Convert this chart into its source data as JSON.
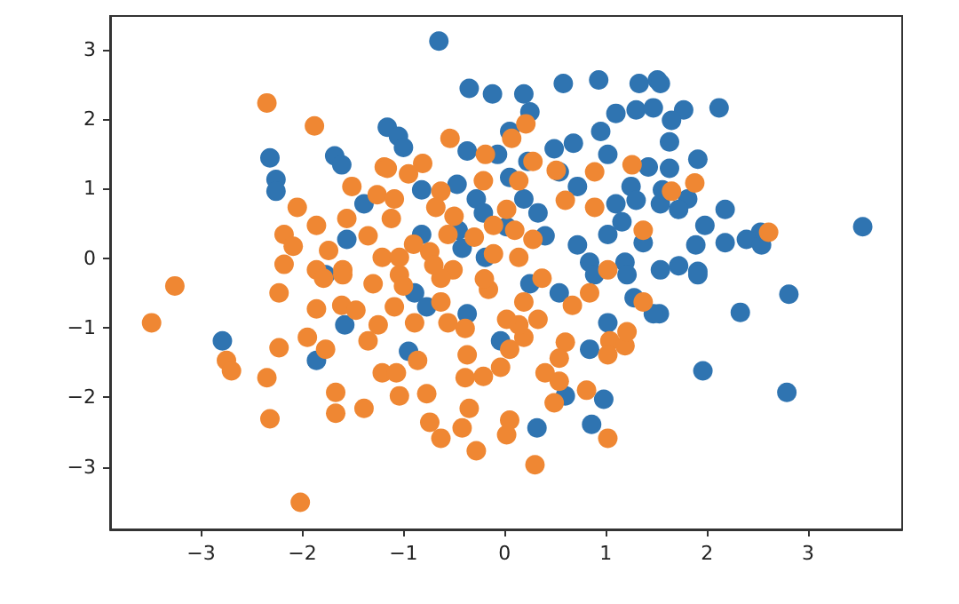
{
  "chart_data": {
    "type": "scatter",
    "xlim": [
      -3.9,
      3.93
    ],
    "ylim": [
      -3.9,
      3.48
    ],
    "xticks": [
      -3,
      -2,
      -1,
      0,
      1,
      2,
      3
    ],
    "yticks": [
      -3,
      -2,
      -1,
      0,
      1,
      2,
      3
    ],
    "grid": false,
    "marker": "circle",
    "series": [
      {
        "color": "#2f74b1",
        "x": [
          -0.65,
          -0.35,
          -0.12,
          0.19,
          0.58,
          0.93,
          1.33,
          1.51,
          -2.32,
          -2.26,
          -2.26,
          -1.68,
          -1.61,
          -1.16,
          -1.05,
          -1.39,
          -1.56,
          0.25,
          1.1,
          1.3,
          1.47,
          0.95,
          0.05,
          -1.0,
          -0.37,
          -0.07,
          0.49,
          0.68,
          1.02,
          1.42,
          1.25,
          0.54,
          0.23,
          0.05,
          -0.28,
          0.19,
          0.72,
          1.1,
          1.3,
          1.54,
          -0.82,
          -0.47,
          -0.21,
          0.33,
          1.16,
          -0.82,
          -0.46,
          0.02,
          0.4,
          0.72,
          1.02,
          1.37,
          0.84,
          1.19,
          -0.19,
          -0.42,
          1.54,
          2.12,
          1.77,
          1.65,
          1.63,
          1.91,
          1.63,
          1.56,
          1.81,
          1.72,
          2.18,
          1.98,
          2.53,
          2.39,
          2.18,
          1.89,
          2.54,
          3.54,
          1.72,
          1.54,
          1.91,
          1.91,
          2.81,
          2.33,
          1.96,
          2.79,
          1.53,
          -2.79,
          -1.58,
          -1.86,
          -1.77,
          -0.89,
          -0.77,
          -0.37,
          -0.04,
          -0.95,
          0.89,
          1.21,
          1.47,
          1.02,
          0.84,
          0.6,
          0.98,
          0.86,
          0.32,
          0.25,
          1.28,
          0.54
        ],
        "values": [
          3.12,
          2.44,
          2.36,
          2.36,
          2.51,
          2.56,
          2.51,
          2.56,
          1.44,
          1.13,
          0.96,
          1.47,
          1.34,
          1.88,
          1.75,
          0.78,
          0.27,
          2.1,
          2.08,
          2.13,
          2.16,
          1.82,
          1.82,
          1.59,
          1.54,
          1.49,
          1.57,
          1.65,
          1.49,
          1.31,
          1.03,
          1.24,
          1.39,
          1.16,
          0.85,
          0.85,
          1.03,
          0.78,
          0.83,
          0.78,
          0.98,
          1.06,
          0.65,
          0.65,
          0.52,
          0.34,
          0.4,
          0.45,
          0.32,
          0.19,
          0.34,
          0.22,
          -0.06,
          -0.06,
          0.01,
          0.14,
          2.51,
          2.16,
          2.13,
          1.98,
          1.67,
          1.42,
          1.29,
          0.98,
          0.85,
          0.7,
          0.7,
          0.47,
          0.37,
          0.27,
          0.22,
          0.19,
          0.19,
          0.45,
          -0.11,
          -0.17,
          -0.19,
          -0.24,
          -0.52,
          -0.78,
          -1.62,
          -1.93,
          -0.8,
          -1.19,
          -0.96,
          -1.47,
          -0.24,
          -0.5,
          -0.7,
          -0.8,
          -1.19,
          -1.34,
          -0.24,
          -0.24,
          -0.8,
          -0.93,
          -1.31,
          -1.98,
          -2.03,
          -2.39,
          -2.44,
          -0.37,
          -0.57,
          -0.5
        ]
      },
      {
        "color": "#ef8733",
        "x": [
          -2.35,
          -1.88,
          -1.19,
          -1.51,
          -2.05,
          -1.86,
          -1.56,
          -2.18,
          -2.09,
          -1.74,
          -2.18,
          -1.35,
          -1.26,
          -1.21,
          -1.86,
          -1.6,
          -0.54,
          0.21,
          0.07,
          -0.19,
          -0.81,
          -1.16,
          -0.95,
          0.28,
          0.51,
          0.89,
          1.26,
          -0.21,
          0.14,
          -0.63,
          -1.09,
          0.6,
          0.89,
          0.02,
          -0.68,
          -1.12,
          -0.11,
          0.28,
          -0.56,
          1.37,
          -0.74,
          -0.11,
          0.14,
          -1.04,
          1.02,
          -0.51,
          1.65,
          1.88,
          2.61,
          -3.26,
          -3.49,
          -2.75,
          -2.7,
          -2.23,
          -2.23,
          -2.35,
          -2.32,
          -2.02,
          -1.95,
          -1.77,
          -1.67,
          -1.67,
          -1.39,
          -1.35,
          -1.25,
          -1.86,
          -1.61,
          -1.47,
          -1.21,
          -1.79,
          -1.6,
          -1.3,
          -1.09,
          -0.89,
          -0.63,
          -0.56,
          -0.39,
          -0.37,
          -0.39,
          -0.21,
          -0.04,
          0.05,
          0.19,
          0.33,
          0.14,
          0.02,
          -1.07,
          -0.86,
          -1.04,
          -0.77,
          -0.35,
          -0.74,
          -0.63,
          -0.42,
          -0.28,
          0.05,
          0.02,
          0.3,
          0.4,
          0.54,
          0.49,
          0.6,
          0.54,
          0.81,
          1.02,
          1.04,
          1.19,
          1.02,
          1.21,
          0.67,
          0.84,
          1.37,
          0.19,
          -0.16,
          -0.63,
          -1.04,
          0.37,
          -0.9,
          -0.7,
          -0.3,
          -0.2,
          0.1,
          -1.0,
          -0.5
        ],
        "values": [
          2.23,
          1.9,
          1.31,
          1.03,
          0.73,
          0.47,
          0.57,
          0.34,
          0.17,
          0.11,
          -0.09,
          0.32,
          0.91,
          0.01,
          -0.17,
          -0.17,
          1.72,
          1.93,
          1.72,
          1.49,
          1.36,
          1.29,
          1.21,
          1.39,
          1.26,
          1.24,
          1.34,
          1.11,
          1.11,
          0.96,
          0.85,
          0.83,
          0.73,
          0.7,
          0.73,
          0.57,
          0.47,
          0.27,
          0.34,
          0.4,
          0.09,
          0.06,
          0.01,
          0.01,
          -0.17,
          -0.17,
          0.96,
          1.08,
          0.37,
          -0.4,
          -0.93,
          -1.47,
          -1.62,
          -0.5,
          -1.29,
          -1.72,
          -2.31,
          -3.51,
          -1.14,
          -1.31,
          -1.93,
          -2.23,
          -2.16,
          -1.19,
          -0.96,
          -0.73,
          -0.68,
          -0.75,
          -1.65,
          -0.29,
          -0.24,
          -0.37,
          -0.7,
          -0.93,
          -0.63,
          -0.93,
          -1.01,
          -1.39,
          -1.72,
          -1.7,
          -1.57,
          -1.31,
          -1.14,
          -0.88,
          -0.96,
          -0.88,
          -1.65,
          -1.47,
          -1.98,
          -1.95,
          -2.16,
          -2.36,
          -2.59,
          -2.44,
          -2.77,
          -2.33,
          -2.54,
          -2.97,
          -1.65,
          -1.77,
          -2.08,
          -1.21,
          -1.44,
          -1.9,
          -2.59,
          -1.19,
          -1.26,
          -1.39,
          -1.06,
          -0.68,
          -0.5,
          -0.63,
          -0.63,
          -0.45,
          -0.29,
          -0.24,
          -0.29,
          0.2,
          -0.1,
          0.3,
          -0.3,
          0.4,
          -0.4,
          0.6
        ]
      }
    ]
  }
}
